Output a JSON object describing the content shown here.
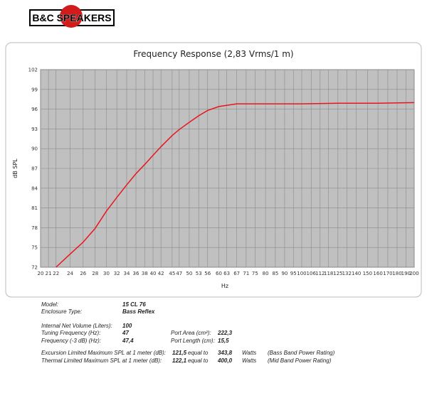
{
  "logo": "B&C SPEAKERS",
  "chart_data": {
    "type": "line",
    "title": "Frequency Response (2,83 Vrms/1 m)",
    "x_label": "Hz",
    "y_label": "dB SPL",
    "xscale": "log",
    "grid": true,
    "xlim": [
      20,
      200
    ],
    "ylim": [
      72,
      102
    ],
    "xticks": [
      20,
      21,
      22,
      24,
      26,
      28,
      30,
      32,
      34,
      36,
      38,
      40,
      42,
      45,
      47,
      50,
      53,
      56,
      60,
      63,
      67,
      71,
      75,
      80,
      85,
      90,
      95,
      100,
      106,
      112,
      118,
      125,
      132,
      140,
      150,
      160,
      170,
      180,
      190,
      200
    ],
    "yticks": [
      72,
      75,
      78,
      81,
      84,
      87,
      90,
      93,
      96,
      99,
      102
    ],
    "x": [
      22,
      24,
      26,
      28,
      30,
      32,
      34,
      36,
      38,
      40,
      42,
      45,
      47,
      50,
      53,
      56,
      60,
      67,
      75,
      85,
      100,
      125,
      160,
      200
    ],
    "series": [
      {
        "color": "#e8161c",
        "values": [
          72,
          74,
          75.8,
          77.9,
          80.5,
          82.6,
          84.5,
          86.2,
          87.6,
          89,
          90.3,
          92,
          92.9,
          94,
          95,
          95.8,
          96.4,
          96.8,
          96.8,
          96.8,
          96.8,
          96.9,
          96.9,
          97
        ]
      }
    ]
  },
  "specs": {
    "model": [
      "Model:",
      "15 CL 76"
    ],
    "enclosure": [
      "Enclosure Type:",
      "Bass Reflex"
    ],
    "volume": [
      "Internal  Net Volume (Liters):",
      "100"
    ],
    "tuning": [
      "Tuning Frequency (Hz):",
      "47",
      "Port Area (cm²):",
      "222,3"
    ],
    "f3": [
      "Frequency (-3 dB) (Hz):",
      "47,4",
      "Port Length (cm):",
      "15,5"
    ],
    "excursion": [
      "Excursion Limited Maximum SPL at 1 meter (dB):",
      "121,5",
      "equal to",
      "343,8",
      "Watts",
      "(Bass Band Power Rating)"
    ],
    "thermal": [
      "Thermal Limited Maximum SPL at 1 meter (dB):",
      "122,1",
      "equal to",
      "400,0",
      "Watts",
      "(Mid Band Power Rating)"
    ]
  }
}
